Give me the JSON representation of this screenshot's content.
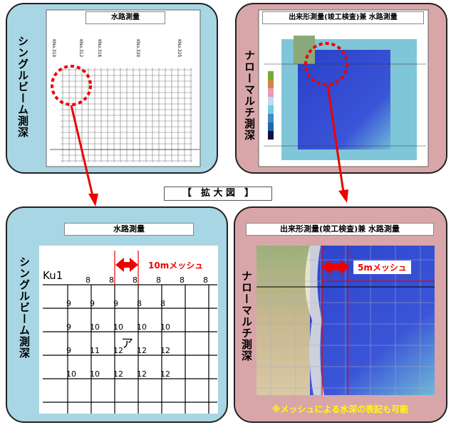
{
  "center_label": "【　拡 大 図　】",
  "panels": [
    {
      "title": "水路測量",
      "side_label": "シングルビーム測深",
      "stations": [
        "KNo.310",
        "KNo.312",
        "KNo.316",
        "KNo.320",
        "KNo.325"
      ]
    },
    {
      "title": "出来形測量(竣工検査)兼 水路測量",
      "side_label": "ナローマルチ測深"
    },
    {
      "title": "水路測量",
      "side_label": "シングルビーム測深",
      "mesh_label": "10mメッシュ",
      "point_label": "Ku1",
      "mark_label": "ア",
      "depths": [
        [
          "8",
          "8",
          "8",
          "8",
          "8",
          "8"
        ],
        [
          "9",
          "9",
          "9",
          "8",
          "8"
        ],
        [
          "9",
          "10",
          "10",
          "10",
          "10"
        ],
        [
          "9",
          "11",
          "12",
          "12",
          "12"
        ],
        [
          "10",
          "10",
          "12",
          "12",
          "12"
        ]
      ]
    },
    {
      "title": "出来形測量(竣工検査)兼 水路測量",
      "side_label": "ナローマルチ測深",
      "mesh_label": "5mメッシュ",
      "note": "※メッシュによる水深の表記も可能"
    }
  ]
}
